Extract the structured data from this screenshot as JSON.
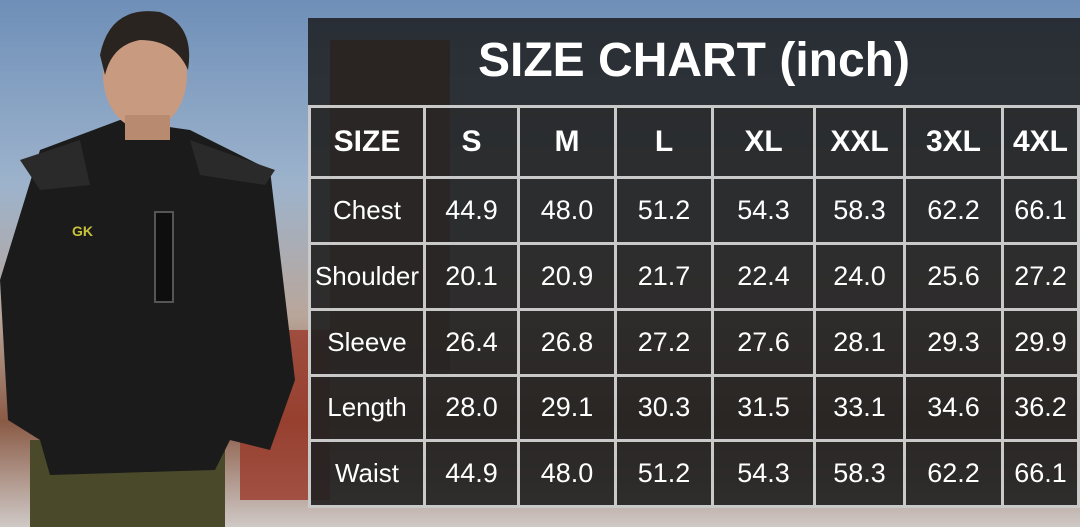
{
  "title": "SIZE CHART (inch)",
  "header": [
    "SIZE",
    "S",
    "M",
    "L",
    "XL",
    "XXL",
    "3XL",
    "4XL"
  ],
  "rows": [
    {
      "label": "Chest",
      "values": [
        "44.9",
        "48.0",
        "51.2",
        "54.3",
        "58.3",
        "62.2",
        "66.1"
      ]
    },
    {
      "label": "Shoulder",
      "values": [
        "20.1",
        "20.9",
        "21.7",
        "22.4",
        "24.0",
        "25.6",
        "27.2"
      ]
    },
    {
      "label": "Sleeve",
      "values": [
        "26.4",
        "26.8",
        "27.2",
        "27.6",
        "28.1",
        "29.3",
        "29.9"
      ]
    },
    {
      "label": "Length",
      "values": [
        "28.0",
        "29.1",
        "30.3",
        "31.5",
        "33.1",
        "34.6",
        "36.2"
      ]
    },
    {
      "label": "Waist",
      "values": [
        "44.9",
        "48.0",
        "51.2",
        "54.3",
        "58.3",
        "62.2",
        "66.1"
      ]
    }
  ],
  "colors": {
    "jacket": "#1b1b1b",
    "pants": "#4a4a2a",
    "logo": "#c8c23a"
  }
}
